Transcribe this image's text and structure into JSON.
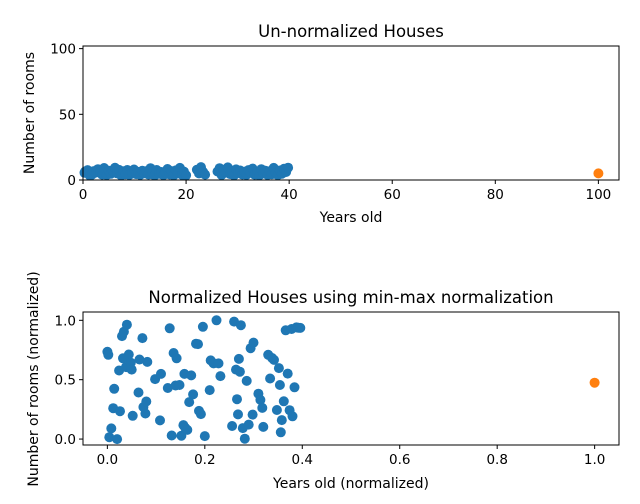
{
  "chart_data": [
    {
      "type": "scatter",
      "title": "Un-normalized Houses",
      "xlabel": "Years old",
      "ylabel": "Number of rooms",
      "xlim": [
        0,
        104
      ],
      "ylim": [
        0,
        102
      ],
      "xticks": [
        0,
        20,
        40,
        60,
        80,
        100
      ],
      "yticks": [
        0,
        50,
        100
      ],
      "xtick_labels": [
        "0",
        "20",
        "40",
        "60",
        "80",
        "100"
      ],
      "ytick_labels": [
        "0",
        "50",
        "100"
      ],
      "grid": false,
      "series": [
        {
          "color": "#1f77b4",
          "points": [
            [
              0.4,
              6.5
            ],
            [
              0.3,
              5.5
            ],
            [
              0.9,
              7.5
            ],
            [
              1.3,
              3.4
            ],
            [
              1.7,
              4.0
            ],
            [
              2.1,
              6.8
            ],
            [
              2.5,
              5.6
            ],
            [
              2.9,
              8.2
            ],
            [
              3.3,
              6.1
            ],
            [
              3.7,
              4.1
            ],
            [
              4.1,
              9.1
            ],
            [
              4.6,
              3.8
            ],
            [
              5.0,
              7.0
            ],
            [
              5.4,
              4.7
            ],
            [
              5.8,
              6.6
            ],
            [
              6.2,
              9.3
            ],
            [
              6.6,
              5.1
            ],
            [
              7.0,
              7.7
            ],
            [
              7.4,
              3.5
            ],
            [
              7.8,
              6.7
            ],
            [
              8.2,
              4.4
            ],
            [
              8.6,
              7.6
            ],
            [
              9.0,
              3.9
            ],
            [
              9.5,
              5.3
            ],
            [
              9.9,
              8.0
            ],
            [
              10.3,
              4.5
            ],
            [
              10.7,
              6.2
            ],
            [
              11.1,
              3.9
            ],
            [
              11.5,
              7.0
            ],
            [
              11.9,
              5.1
            ],
            [
              12.3,
              6.8
            ],
            [
              12.7,
              4.2
            ],
            [
              13.1,
              9.0
            ],
            [
              13.5,
              5.7
            ],
            [
              13.9,
              3.4
            ],
            [
              14.3,
              7.6
            ],
            [
              14.8,
              4.8
            ],
            [
              15.2,
              6.1
            ],
            [
              15.6,
              3.7
            ],
            [
              16.0,
              5.9
            ],
            [
              16.4,
              8.4
            ],
            [
              16.8,
              4.3
            ],
            [
              17.2,
              6.8
            ],
            [
              17.6,
              3.6
            ],
            [
              18.0,
              7.3
            ],
            [
              18.4,
              5.2
            ],
            [
              18.8,
              9.2
            ],
            [
              19.2,
              4.0
            ],
            [
              19.6,
              6.4
            ],
            [
              20.0,
              3.6
            ],
            [
              22.1,
              7.8
            ],
            [
              22.5,
              5.0
            ],
            [
              22.9,
              9.8
            ],
            [
              23.3,
              6.2
            ],
            [
              23.7,
              4.1
            ],
            [
              26.1,
              6.5
            ],
            [
              26.5,
              9.0
            ],
            [
              26.9,
              3.8
            ],
            [
              27.3,
              7.4
            ],
            [
              27.7,
              5.8
            ],
            [
              28.1,
              9.6
            ],
            [
              28.5,
              4.6
            ],
            [
              28.9,
              6.9
            ],
            [
              29.3,
              3.5
            ],
            [
              29.7,
              8.1
            ],
            [
              30.1,
              5.4
            ],
            [
              30.5,
              7.2
            ],
            [
              30.9,
              4.2
            ],
            [
              31.3,
              6.3
            ],
            [
              31.7,
              3.9
            ],
            [
              32.1,
              7.5
            ],
            [
              32.5,
              5.6
            ],
            [
              32.9,
              8.7
            ],
            [
              33.3,
              4.1
            ],
            [
              33.8,
              6.0
            ],
            [
              34.2,
              3.5
            ],
            [
              34.6,
              8.2
            ],
            [
              35.0,
              5.0
            ],
            [
              35.4,
              7.1
            ],
            [
              35.8,
              3.9
            ],
            [
              36.2,
              6.7
            ],
            [
              36.6,
              4.4
            ],
            [
              37.0,
              9.2
            ],
            [
              37.4,
              5.4
            ],
            [
              37.8,
              3.7
            ],
            [
              38.2,
              7.2
            ],
            [
              38.6,
              4.8
            ],
            [
              39.0,
              8.5
            ],
            [
              39.4,
              6.1
            ],
            [
              39.8,
              9.4
            ]
          ]
        },
        {
          "color": "#ff7f0e",
          "points": [
            [
              100,
              5
            ]
          ]
        }
      ]
    },
    {
      "type": "scatter",
      "title": "Normalized Houses using min-max normalization",
      "xlabel": "Years old (normalized)",
      "ylabel": "Number of rooms (normalized)",
      "xlim": [
        -0.05,
        1.05
      ],
      "ylim": [
        -0.05,
        1.07
      ],
      "xticks": [
        0.0,
        0.2,
        0.4,
        0.6,
        0.8,
        1.0
      ],
      "yticks": [
        0.0,
        0.5,
        1.0
      ],
      "xtick_labels": [
        "0.0",
        "0.2",
        "0.4",
        "0.6",
        "0.8",
        "1.0"
      ],
      "ytick_labels": [
        "0.0",
        "0.5",
        "1.0"
      ],
      "grid": false,
      "series": [
        {
          "color": "#1f77b4",
          "points": [
            [
              0.0,
              0.735
            ],
            [
              0.002,
              0.71
            ],
            [
              0.004,
              0.016
            ],
            [
              0.008,
              0.09
            ],
            [
              0.012,
              0.26
            ],
            [
              0.014,
              0.423
            ],
            [
              0.02,
              0.0
            ],
            [
              0.024,
              0.577
            ],
            [
              0.026,
              0.235
            ],
            [
              0.03,
              0.867
            ],
            [
              0.032,
              0.68
            ],
            [
              0.034,
              0.904
            ],
            [
              0.038,
              0.606
            ],
            [
              0.04,
              0.963
            ],
            [
              0.044,
              0.712
            ],
            [
              0.048,
              0.643
            ],
            [
              0.05,
              0.585
            ],
            [
              0.052,
              0.196
            ],
            [
              0.064,
              0.392
            ],
            [
              0.066,
              0.67
            ],
            [
              0.072,
              0.85
            ],
            [
              0.074,
              0.27
            ],
            [
              0.078,
              0.215
            ],
            [
              0.08,
              0.316
            ],
            [
              0.082,
              0.65
            ],
            [
              0.098,
              0.505
            ],
            [
              0.108,
              0.157
            ],
            [
              0.11,
              0.549
            ],
            [
              0.124,
              0.43
            ],
            [
              0.128,
              0.933
            ],
            [
              0.132,
              0.03
            ],
            [
              0.136,
              0.725
            ],
            [
              0.14,
              0.451
            ],
            [
              0.142,
              0.68
            ],
            [
              0.148,
              0.455
            ],
            [
              0.152,
              0.028
            ],
            [
              0.156,
              0.118
            ],
            [
              0.158,
              0.549
            ],
            [
              0.16,
              0.094
            ],
            [
              0.164,
              0.077
            ],
            [
              0.168,
              0.311
            ],
            [
              0.172,
              0.536
            ],
            [
              0.176,
              0.376
            ],
            [
              0.182,
              0.803
            ],
            [
              0.186,
              0.8
            ],
            [
              0.188,
              0.237
            ],
            [
              0.192,
              0.21
            ],
            [
              0.196,
              0.945
            ],
            [
              0.2,
              0.025
            ],
            [
              0.21,
              0.412
            ],
            [
              0.212,
              0.662
            ],
            [
              0.218,
              0.637
            ],
            [
              0.224,
              1.0
            ],
            [
              0.228,
              0.637
            ],
            [
              0.232,
              0.53
            ],
            [
              0.256,
              0.11
            ],
            [
              0.26,
              0.989
            ],
            [
              0.264,
              0.585
            ],
            [
              0.266,
              0.336
            ],
            [
              0.268,
              0.208
            ],
            [
              0.27,
              0.675
            ],
            [
              0.272,
              0.567
            ],
            [
              0.274,
              0.959
            ],
            [
              0.278,
              0.092
            ],
            [
              0.282,
              0.003
            ],
            [
              0.286,
              0.49
            ],
            [
              0.29,
              0.122
            ],
            [
              0.294,
              0.765
            ],
            [
              0.298,
              0.206
            ],
            [
              0.3,
              0.812
            ],
            [
              0.31,
              0.382
            ],
            [
              0.314,
              0.33
            ],
            [
              0.318,
              0.262
            ],
            [
              0.32,
              0.102
            ],
            [
              0.33,
              0.71
            ],
            [
              0.334,
              0.51
            ],
            [
              0.338,
              0.683
            ],
            [
              0.342,
              0.667
            ],
            [
              0.348,
              0.245
            ],
            [
              0.352,
              0.598
            ],
            [
              0.354,
              0.455
            ],
            [
              0.356,
              0.057
            ],
            [
              0.358,
              0.16
            ],
            [
              0.362,
              0.318
            ],
            [
              0.366,
              0.916
            ],
            [
              0.37,
              0.551
            ],
            [
              0.374,
              0.243
            ],
            [
              0.378,
              0.927
            ],
            [
              0.38,
              0.192
            ],
            [
              0.384,
              0.436
            ],
            [
              0.388,
              0.94
            ],
            [
              0.392,
              0.938
            ],
            [
              0.396,
              0.936
            ]
          ]
        },
        {
          "color": "#ff7f0e",
          "points": [
            [
              1.0,
              0.475
            ]
          ]
        }
      ]
    }
  ]
}
